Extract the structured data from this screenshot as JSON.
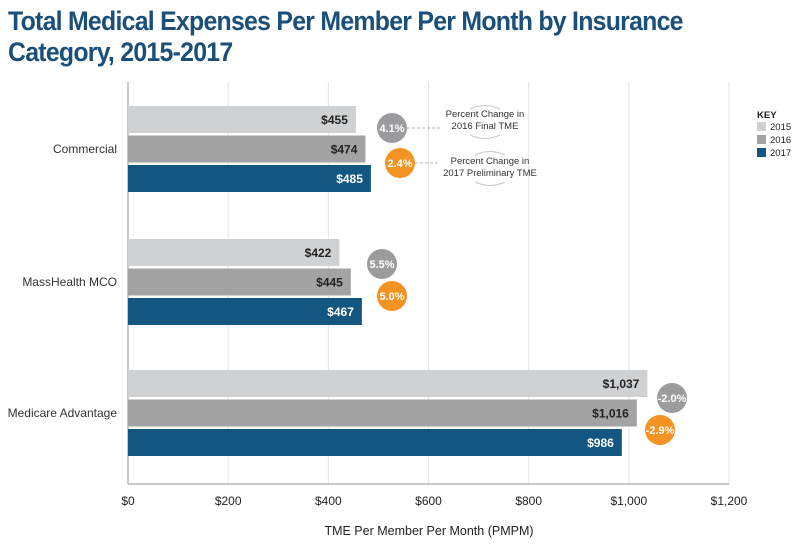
{
  "chart_data": {
    "type": "bar",
    "orientation": "horizontal",
    "title": "Total Medical Expenses Per Member Per Month by Insurance Category, 2015-2017",
    "xlabel": "TME Per Member Per Month (PMPM)",
    "ylabel": "",
    "xlim": [
      0,
      1200
    ],
    "x_ticks": [
      0,
      200,
      400,
      600,
      800,
      1000,
      1200
    ],
    "x_tick_labels": [
      "$0",
      "$200",
      "$400",
      "$600",
      "$800",
      "$1,000",
      "$1,200"
    ],
    "grid": true,
    "categories": [
      "Commercial",
      "MassHealth MCO",
      "Medicare Advantage"
    ],
    "series": [
      {
        "name": "2015",
        "color": "#d0d1d3",
        "label_color": "#222222",
        "values": [
          455,
          422,
          1037
        ],
        "labels": [
          "$455",
          "$422",
          "$1,037"
        ]
      },
      {
        "name": "2016",
        "color": "#a3a3a4",
        "label_color": "#222222",
        "values": [
          474,
          445,
          1016
        ],
        "labels": [
          "$474",
          "$445",
          "$1,016"
        ]
      },
      {
        "name": "2017",
        "color": "#135682",
        "label_color": "#ffffff",
        "values": [
          485,
          467,
          986
        ],
        "labels": [
          "$485",
          "$467",
          "$986"
        ]
      }
    ],
    "percent_changes": [
      {
        "name": "Percent Change in 2016 Final TME",
        "color": "#9c9c9e",
        "values": [
          4.1,
          5.5,
          -2.0
        ],
        "labels": [
          "4.1%",
          "5.5%",
          "-2.0%"
        ]
      },
      {
        "name": "Percent Change in 2017 Preliminary TME",
        "color": "#f39324",
        "values": [
          2.4,
          5.0,
          -2.9
        ],
        "labels": [
          "2.4%",
          "5.0%",
          "-2.9%"
        ]
      }
    ],
    "annotations": [
      {
        "lines": [
          "Percent Change in",
          "2016 Final TME"
        ]
      },
      {
        "lines": [
          "Percent Change in",
          "2017 Preliminary TME"
        ]
      }
    ],
    "legend": {
      "title": "KEY",
      "position": "right",
      "entries": [
        "2015",
        "2016",
        "2017"
      ]
    }
  }
}
